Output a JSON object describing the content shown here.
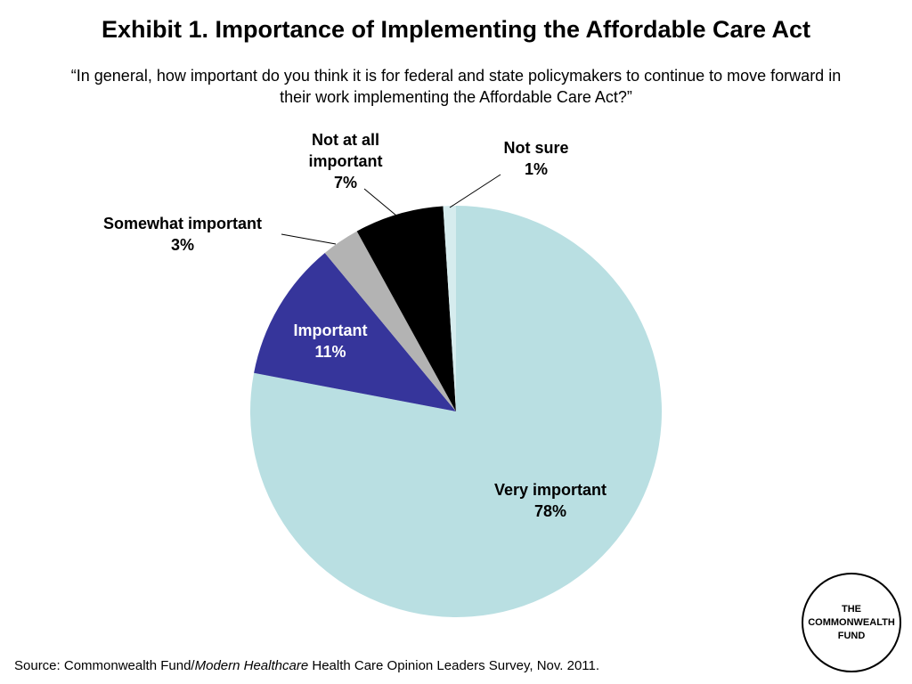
{
  "title": "Exhibit 1. Importance of Implementing the Affordable Care Act",
  "subtitle": "“In general, how important do you think it is for federal and state policymakers to continue to move forward in their work implementing the Affordable Care Act?”",
  "source": {
    "prefix": "Source: Commonwealth Fund/",
    "italic": "Modern Healthcare",
    "suffix": " Health Care Opinion Leaders Survey, Nov. 2011."
  },
  "logo": {
    "line1": "THE",
    "line2": "COMMONWEALTH",
    "line3": "FUND"
  },
  "chart_data": {
    "type": "pie",
    "title": "Exhibit 1. Importance of Implementing the Affordable Care Act",
    "slices": [
      {
        "label": "Very important",
        "value": 78,
        "display": "78%",
        "color": "#b9dfe2",
        "label_color": "#000000"
      },
      {
        "label": "Important",
        "value": 11,
        "display": "11%",
        "color": "#36359b",
        "label_color": "#ffffff"
      },
      {
        "label": "Somewhat important",
        "value": 3,
        "display": "3%",
        "color": "#b3b3b3",
        "label_color": "#000000"
      },
      {
        "label": "Not at all important",
        "value": 7,
        "display": "7%",
        "color": "#000000",
        "label_color": "#000000"
      },
      {
        "label": "Not sure",
        "value": 1,
        "display": "1%",
        "color": "#d6ecee",
        "label_color": "#000000"
      }
    ],
    "start_angle_deg": 90,
    "direction": "clockwise",
    "legend": "none"
  }
}
